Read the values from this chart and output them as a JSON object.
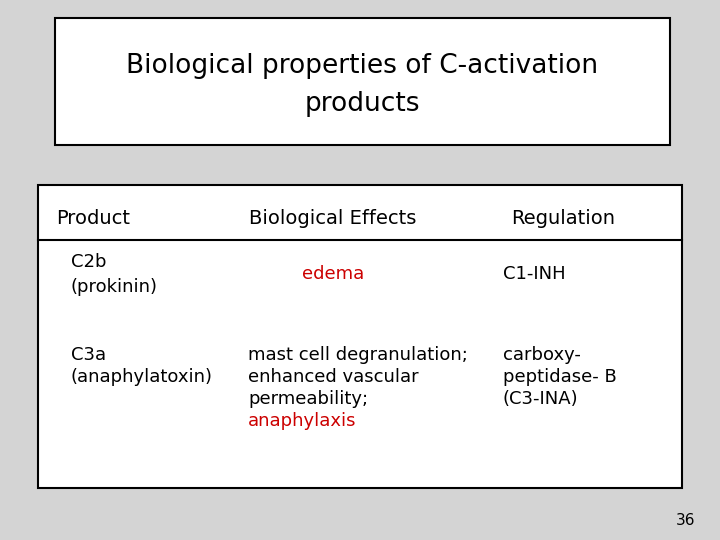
{
  "title_line1": "Biological properties of C-activation",
  "title_line2": "products",
  "background_color": "#d4d4d4",
  "title_box_color": "#ffffff",
  "table_box_color": "#ffffff",
  "header_row": [
    "Product",
    "Biological Effects",
    "Regulation"
  ],
  "row1_col1_line1": "C2b",
  "row1_col1_line2": "(prokinin)",
  "row1_col2": "edema",
  "row1_col2_color": "#cc0000",
  "row1_col3": "C1-INH",
  "row2_col1_line1": "C3a",
  "row2_col1_line2": "(anaphylatoxin)",
  "row2_col2_line1": "mast cell degranulation;",
  "row2_col2_line2": "enhanced vascular",
  "row2_col2_line3": "permeability;",
  "row2_col2_line4": "anaphylaxis",
  "row2_col2_line4_color": "#cc0000",
  "row2_col3_line1": "carboxy-",
  "row2_col3_line2": "peptidase- B",
  "row2_col3_line3": "(C3-INA)",
  "page_number": "36",
  "font_size_title": 19,
  "font_size_table_header": 14,
  "font_size_table_body": 13,
  "font_size_page": 11,
  "text_color": "#000000",
  "header_divider_color": "#000000",
  "table_border_color": "#000000"
}
